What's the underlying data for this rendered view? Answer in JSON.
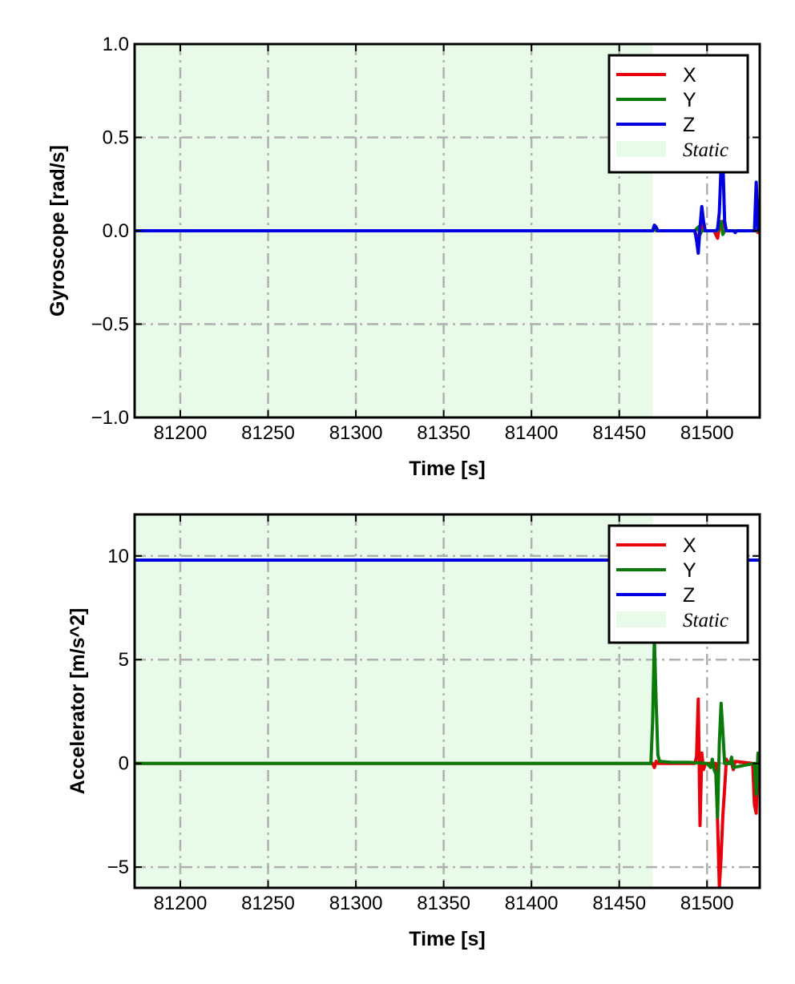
{
  "chart_data": [
    {
      "type": "line",
      "xlabel": "Time [s]",
      "ylabel": "Gyroscope [rad/s]",
      "xlim": [
        81174,
        81530
      ],
      "ylim": [
        -1.0,
        1.0
      ],
      "xticks": [
        81200,
        81250,
        81300,
        81350,
        81400,
        81450,
        81500
      ],
      "yticks": [
        -1.0,
        -0.5,
        0.0,
        0.5,
        1.0
      ],
      "ytick_labels": [
        "−1.0",
        "−0.5",
        "0.0",
        "0.5",
        "1.0"
      ],
      "grid": true,
      "legend_position": "top-right",
      "static_region": {
        "label": "Static",
        "x": [
          81174,
          81469
        ],
        "color": "#e8fbe8"
      },
      "series": [
        {
          "name": "X",
          "color": "#e8000b",
          "x": [
            81174,
            81469,
            81470,
            81471,
            81493,
            81494,
            81495,
            81496,
            81497,
            81498,
            81504,
            81505,
            81506,
            81507,
            81509,
            81511,
            81512,
            81528,
            81529,
            81530
          ],
          "y": [
            0,
            0,
            0.01,
            0,
            0,
            -0.03,
            -0.06,
            0.02,
            0.08,
            0,
            0,
            -0.02,
            -0.04,
            0.02,
            0.05,
            0,
            0,
            0,
            -0.01,
            0
          ]
        },
        {
          "name": "Y",
          "color": "#0a7a0a",
          "x": [
            81174,
            81469,
            81470,
            81471,
            81493,
            81495,
            81496,
            81497,
            81506,
            81507,
            81508,
            81509,
            81510,
            81528,
            81530
          ],
          "y": [
            0,
            0,
            0.02,
            0,
            0,
            0.02,
            -0.02,
            0,
            0,
            0.03,
            0.05,
            -0.02,
            0,
            0,
            0
          ]
        },
        {
          "name": "Z",
          "color": "#0000e0",
          "x": [
            81174,
            81469,
            81470,
            81471,
            81472,
            81493,
            81494,
            81495,
            81496,
            81497,
            81498,
            81499,
            81505,
            81506,
            81507,
            81508,
            81509,
            81510,
            81511,
            81512,
            81515,
            81516,
            81517,
            81527,
            81528,
            81529,
            81530
          ],
          "y": [
            0,
            0,
            0.03,
            0.02,
            0,
            0,
            -0.05,
            -0.12,
            0.02,
            0.13,
            0.05,
            0,
            0,
            0.01,
            0.1,
            0.35,
            0.38,
            0.05,
            0,
            0,
            0,
            -0.01,
            0,
            0,
            0.26,
            0.01,
            0
          ]
        }
      ]
    },
    {
      "type": "line",
      "xlabel": "Time [s]",
      "ylabel": "Accelerator [m/s^2]",
      "xlim": [
        81174,
        81530
      ],
      "ylim": [
        -6.0,
        12.0
      ],
      "xticks": [
        81200,
        81250,
        81300,
        81350,
        81400,
        81450,
        81500
      ],
      "yticks": [
        -5,
        0,
        5,
        10
      ],
      "ytick_labels": [
        "−5",
        "0",
        "5",
        "10"
      ],
      "grid": true,
      "legend_position": "top-right",
      "static_region": {
        "label": "Static",
        "x": [
          81174,
          81469
        ],
        "color": "#e8fbe8"
      },
      "series": [
        {
          "name": "X",
          "color": "#e8000b",
          "x": [
            81174,
            81469,
            81470,
            81471,
            81472,
            81493,
            81494,
            81495,
            81496,
            81497,
            81498,
            81499,
            81505,
            81506,
            81507,
            81508,
            81509,
            81510,
            81511,
            81512,
            81514,
            81515,
            81516,
            81526,
            81527,
            81528,
            81529,
            81530
          ],
          "y": [
            0,
            0,
            -0.2,
            0.1,
            0,
            0,
            0.3,
            3.1,
            -3.0,
            0.5,
            -0.3,
            0,
            0,
            -2.8,
            -6.0,
            -4.5,
            -2.5,
            -1.2,
            0.2,
            0,
            0,
            -0.3,
            0.1,
            0,
            -2.0,
            -2.4,
            0.3,
            0
          ]
        },
        {
          "name": "Y",
          "color": "#0a7a0a",
          "x": [
            81174,
            81468,
            81469,
            81470,
            81471,
            81472,
            81473,
            81480,
            81490,
            81500,
            81502,
            81503,
            81504,
            81505,
            81506,
            81507,
            81508,
            81509,
            81510,
            81513,
            81514,
            81515,
            81527,
            81528,
            81529,
            81530
          ],
          "y": [
            0,
            0,
            2.0,
            6.0,
            3.0,
            0.4,
            0.1,
            0.05,
            0.05,
            0,
            -0.2,
            0.2,
            -0.3,
            -0.5,
            -2.6,
            1.0,
            2.9,
            1.5,
            0,
            0,
            0.3,
            -0.2,
            0,
            -1.5,
            0.5,
            0
          ]
        },
        {
          "name": "Z",
          "color": "#0000e0",
          "x": [
            81174,
            81469,
            81527,
            81528,
            81530
          ],
          "y": [
            9.8,
            9.8,
            9.8,
            9.8,
            9.8
          ]
        }
      ]
    }
  ]
}
